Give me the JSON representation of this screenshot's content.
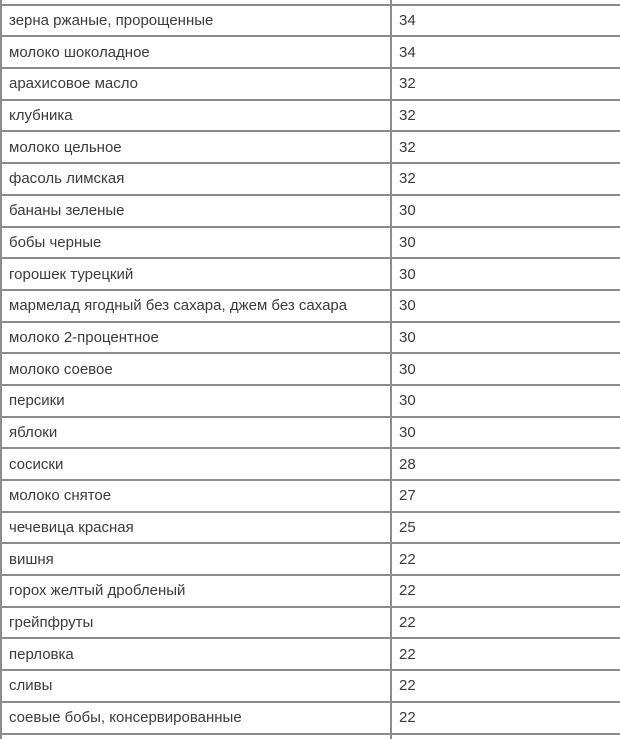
{
  "table": {
    "rows": [
      {
        "name": "зерна ржаные, пророщенные",
        "value": "34"
      },
      {
        "name": "молоко шоколадное",
        "value": "34"
      },
      {
        "name": "арахисовое масло",
        "value": "32"
      },
      {
        "name": "клубника",
        "value": "32"
      },
      {
        "name": "молоко цельное",
        "value": "32"
      },
      {
        "name": "фасоль лимская",
        "value": "32"
      },
      {
        "name": "бананы зеленые",
        "value": "30"
      },
      {
        "name": "бобы черные",
        "value": "30"
      },
      {
        "name": "горошек турецкий",
        "value": "30"
      },
      {
        "name": "мармелад ягодный без сахара, джем без сахара",
        "value": "30"
      },
      {
        "name": "молоко 2-процентное",
        "value": "30"
      },
      {
        "name": "молоко соевое",
        "value": "30"
      },
      {
        "name": "персики",
        "value": "30"
      },
      {
        "name": "яблоки",
        "value": "30"
      },
      {
        "name": "сосиски",
        "value": "28"
      },
      {
        "name": "молоко снятое",
        "value": "27"
      },
      {
        "name": "чечевица красная",
        "value": "25"
      },
      {
        "name": "вишня",
        "value": "22"
      },
      {
        "name": "горох желтый дробленый",
        "value": "22"
      },
      {
        "name": "грейпфруты",
        "value": "22"
      },
      {
        "name": "перловка",
        "value": "22"
      },
      {
        "name": "сливы",
        "value": "22"
      },
      {
        "name": "соевые бобы, консервированные",
        "value": "22"
      }
    ]
  },
  "colors": {
    "border": "#8c8c8c",
    "text": "#3b3b3b",
    "background": "#ffffff"
  }
}
